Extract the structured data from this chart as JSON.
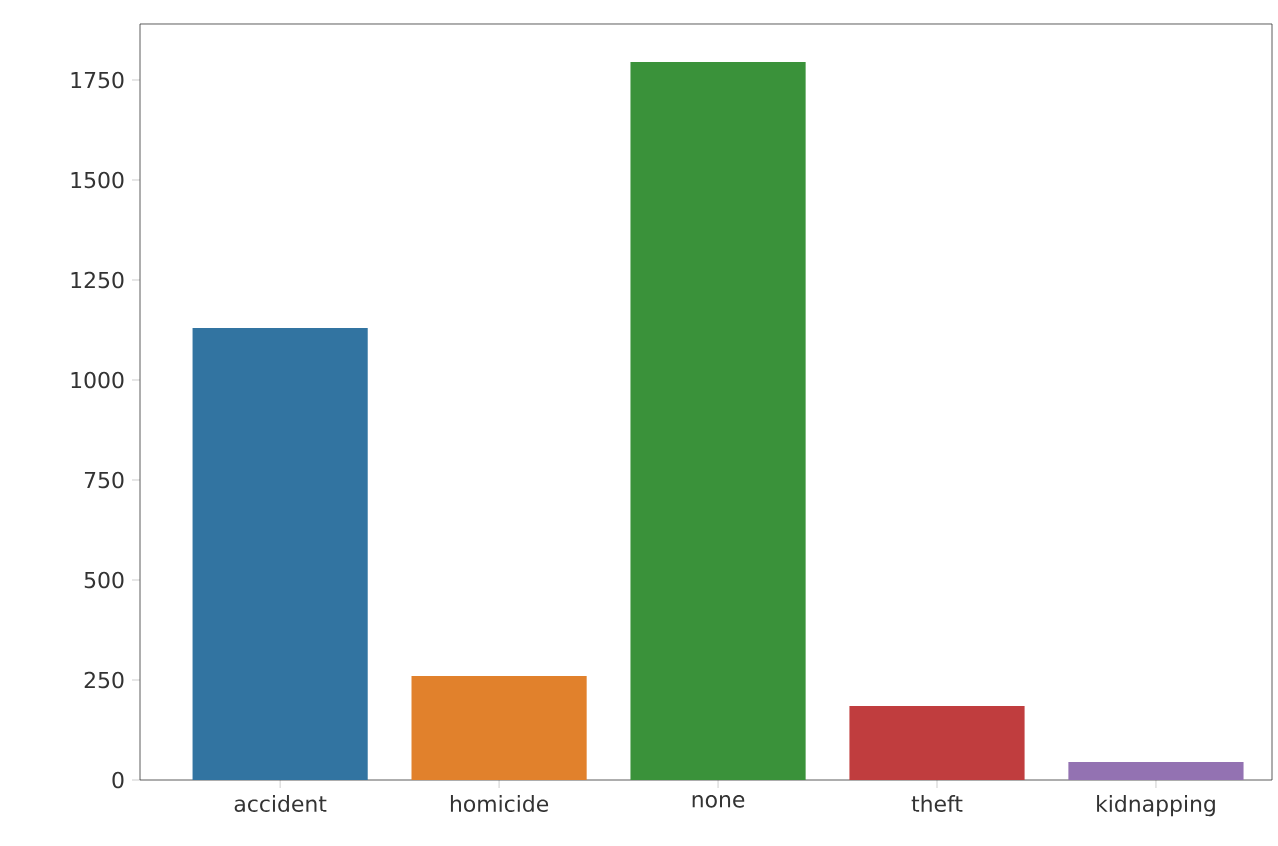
{
  "chart_data": {
    "type": "bar",
    "categories": [
      "accident",
      "homicide",
      "none",
      "theft",
      "kidnapping"
    ],
    "values": [
      1130,
      260,
      1795,
      185,
      45
    ],
    "colors": [
      "#3274a1",
      "#e1812c",
      "#3a923a",
      "#c03d3e",
      "#9372b2"
    ],
    "ylim": [
      0,
      1890
    ],
    "yticks": [
      0,
      250,
      500,
      750,
      1000,
      1250,
      1500,
      1750
    ],
    "grid": false
  }
}
